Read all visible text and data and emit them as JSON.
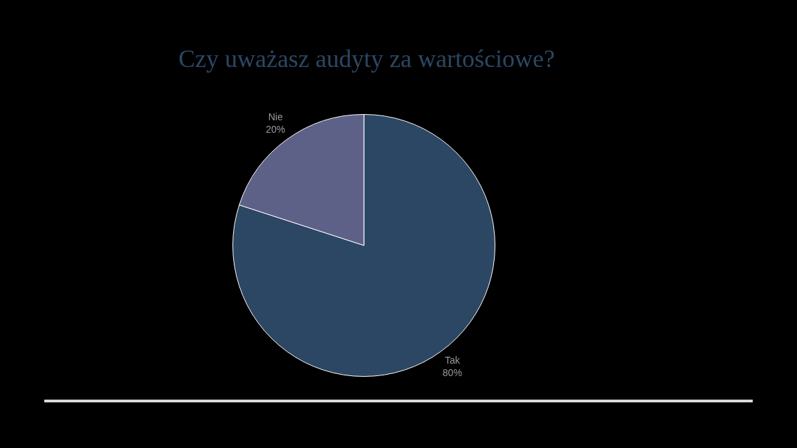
{
  "chart_data": {
    "type": "pie",
    "title": "Czy uważasz audyty za wartościowe?",
    "categories": [
      "Tak",
      "Nie"
    ],
    "values": [
      80,
      20
    ],
    "colors": [
      "#2c4763",
      "#5e6187"
    ],
    "value_labels": [
      "80%",
      "20%"
    ]
  }
}
